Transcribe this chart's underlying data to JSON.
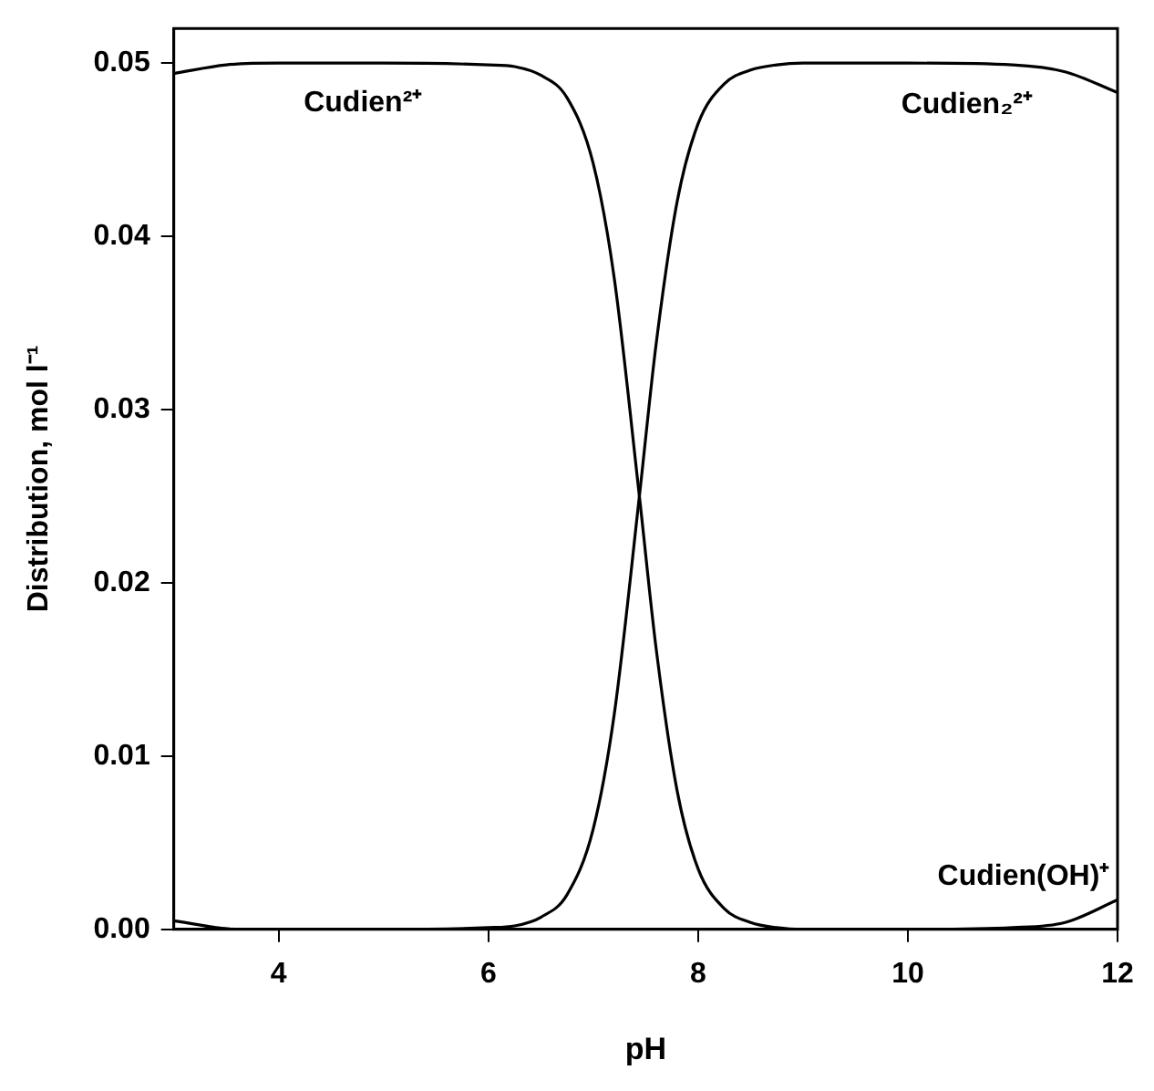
{
  "chart_data": {
    "type": "line",
    "xlabel": "pH",
    "ylabel": "Distribution, mol l⁻¹",
    "x": [
      3,
      3.5,
      4,
      5,
      6,
      6.25,
      6.5,
      6.75,
      7,
      7.2,
      7.44,
      7.6,
      7.8,
      8,
      8.25,
      8.5,
      8.75,
      9,
      9.5,
      10,
      11,
      11.5,
      12
    ],
    "series": [
      {
        "name": "Cudien²⁺",
        "color": "#000000",
        "values": [
          0.0494,
          0.0499,
          0.05,
          0.05,
          0.0499,
          0.0498,
          0.0493,
          0.048,
          0.0442,
          0.0376,
          0.025,
          0.0162,
          0.008,
          0.0035,
          0.0012,
          0.0004,
          0.0001,
          0,
          0,
          0,
          0,
          0,
          0
        ]
      },
      {
        "name": "Cudien₂²⁺",
        "color": "#000000",
        "values": [
          0,
          0,
          0,
          0,
          0.0001,
          0.0002,
          0.0007,
          0.002,
          0.0058,
          0.0124,
          0.025,
          0.0338,
          0.042,
          0.0465,
          0.0488,
          0.0496,
          0.0499,
          0.05,
          0.05,
          0.05,
          0.0499,
          0.0495,
          0.0483
        ]
      },
      {
        "name": "Cudien(OH)⁺",
        "color": "#000000",
        "values": [
          0,
          0,
          0,
          0,
          0,
          0,
          0,
          0,
          0,
          0,
          0,
          0,
          0,
          0,
          0,
          0,
          0,
          0,
          0,
          0,
          0.0001,
          0.0004,
          0.0017
        ]
      },
      {
        "color": "#000000",
        "x": [
          3,
          3.2,
          3.4,
          3.6
        ],
        "values": [
          0.0005,
          0.0003,
          0.0001,
          0
        ]
      }
    ],
    "xlim": [
      3,
      12
    ],
    "xticks": [
      4,
      6,
      8,
      10,
      12
    ],
    "ylim": [
      0,
      0.052
    ],
    "yticks": [
      {
        "value": 0,
        "label": "0.00"
      },
      {
        "value": 0.01,
        "label": "0.01"
      },
      {
        "value": 0.02,
        "label": "0.02"
      },
      {
        "value": 0.03,
        "label": "0.03"
      },
      {
        "value": 0.04,
        "label": "0.04"
      },
      {
        "value": 0.05,
        "label": "0.05"
      }
    ],
    "grid": false,
    "legend": false,
    "marker": "none",
    "line_style": "solid"
  }
}
